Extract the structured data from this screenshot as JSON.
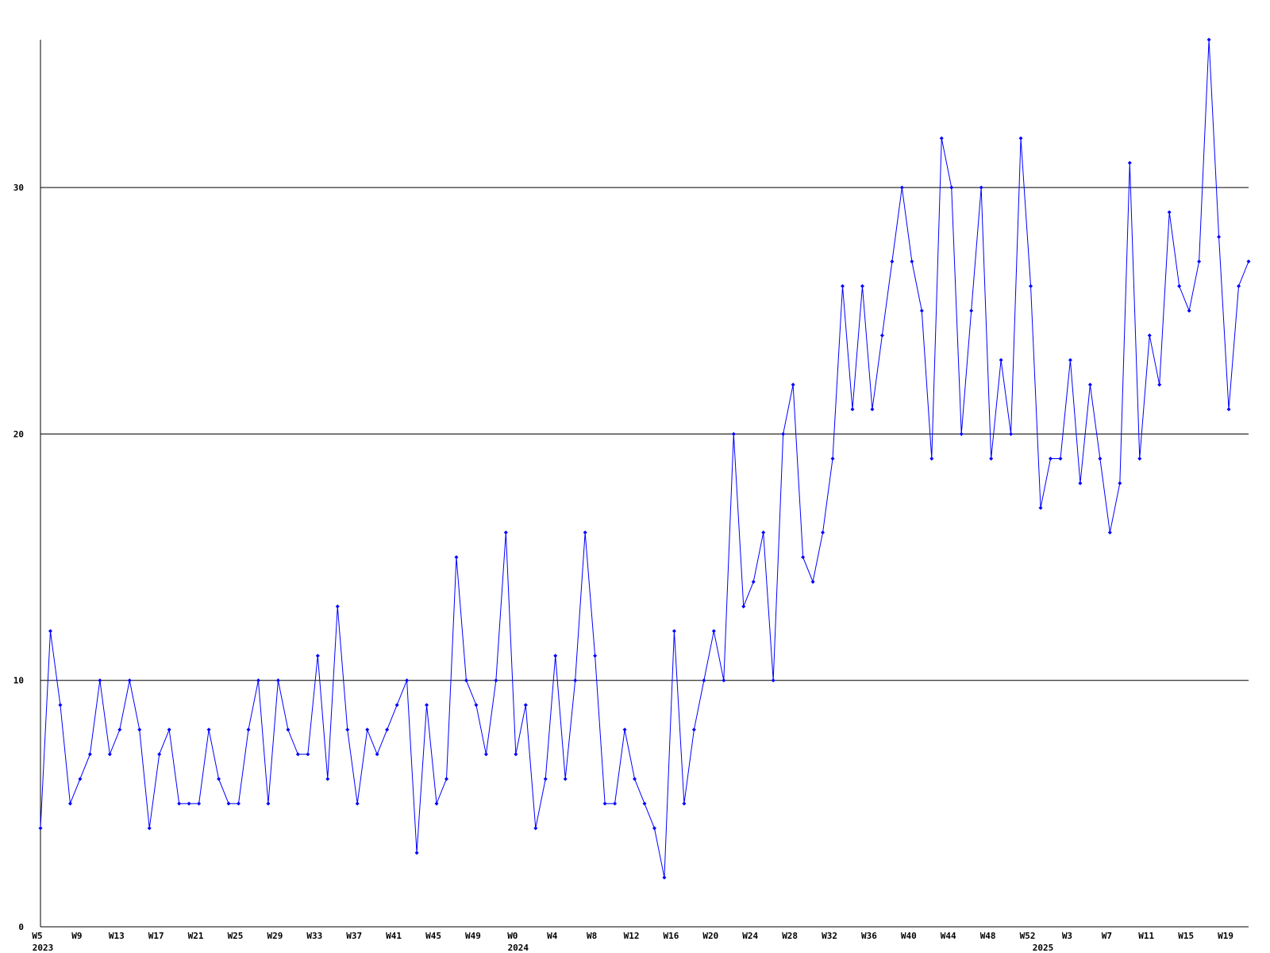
{
  "chart_data": {
    "type": "line",
    "categories": [
      "W5",
      null,
      null,
      null,
      "W9",
      null,
      null,
      null,
      "W13",
      null,
      null,
      null,
      "W17",
      null,
      null,
      null,
      "W21",
      null,
      null,
      null,
      "W25",
      null,
      null,
      null,
      "W29",
      null,
      null,
      null,
      "W33",
      null,
      null,
      null,
      "W37",
      null,
      null,
      null,
      "W41",
      null,
      null,
      null,
      "W45",
      null,
      null,
      null,
      "W49",
      null,
      null,
      null,
      "W0",
      null,
      null,
      null,
      "W4",
      null,
      null,
      null,
      "W8",
      null,
      null,
      null,
      "W12",
      null,
      null,
      null,
      "W16",
      null,
      null,
      null,
      "W20",
      null,
      null,
      null,
      "W24",
      null,
      null,
      null,
      "W28",
      null,
      null,
      null,
      "W32",
      null,
      null,
      null,
      "W36",
      null,
      null,
      null,
      "W40",
      null,
      null,
      null,
      "W44",
      null,
      null,
      null,
      "W48",
      null,
      null,
      null,
      "W52",
      null,
      null,
      null,
      "W3",
      null,
      null,
      null,
      "W7",
      null,
      null,
      null,
      "W11",
      null,
      null,
      null,
      "W15",
      null,
      null,
      null,
      "W19",
      null,
      null
    ],
    "years": [
      "2023",
      null,
      null,
      null,
      null,
      null,
      null,
      null,
      null,
      null,
      null,
      null,
      null,
      null,
      null,
      null,
      null,
      null,
      null,
      null,
      null,
      null,
      null,
      null,
      null,
      null,
      null,
      null,
      null,
      null,
      null,
      null,
      null,
      null,
      null,
      null,
      null,
      null,
      null,
      null,
      null,
      null,
      null,
      null,
      null,
      null,
      null,
      null,
      "2024",
      null,
      null,
      null,
      null,
      null,
      null,
      null,
      null,
      null,
      null,
      null,
      null,
      null,
      null,
      null,
      null,
      null,
      null,
      null,
      null,
      null,
      null,
      null,
      null,
      null,
      null,
      null,
      null,
      null,
      null,
      null,
      null,
      null,
      null,
      null,
      null,
      null,
      null,
      null,
      null,
      null,
      null,
      null,
      null,
      null,
      null,
      null,
      null,
      null,
      null,
      null,
      null,
      "2025",
      null,
      null,
      null,
      null,
      null,
      null,
      null,
      null,
      null,
      null,
      null,
      null,
      null,
      null,
      null,
      null,
      null,
      null,
      null,
      null,
      null
    ],
    "values": [
      4,
      12,
      9,
      5,
      6,
      7,
      10,
      7,
      8,
      10,
      8,
      4,
      7,
      8,
      5,
      5,
      5,
      8,
      6,
      5,
      5,
      8,
      10,
      5,
      10,
      8,
      7,
      7,
      11,
      6,
      13,
      8,
      5,
      8,
      7,
      8,
      9,
      10,
      3,
      9,
      5,
      6,
      15,
      10,
      9,
      7,
      10,
      16,
      7,
      9,
      4,
      6,
      11,
      6,
      10,
      16,
      11,
      5,
      5,
      8,
      6,
      5,
      4,
      2,
      12,
      5,
      8,
      10,
      12,
      10,
      20,
      13,
      14,
      16,
      10,
      20,
      22,
      15,
      14,
      16,
      19,
      26,
      21,
      26,
      21,
      24,
      27,
      30,
      27,
      25,
      19,
      32,
      30,
      20,
      25,
      30,
      19,
      23,
      20,
      32,
      26,
      17,
      19,
      19,
      23,
      18,
      22,
      19,
      16,
      18,
      31,
      19,
      24,
      22,
      29,
      26,
      25,
      27,
      36,
      28,
      21,
      26,
      27
    ],
    "color": "#0000ff",
    "ylim": [
      0,
      36
    ],
    "yticks": [
      0,
      10,
      20,
      30
    ],
    "grid": true
  }
}
